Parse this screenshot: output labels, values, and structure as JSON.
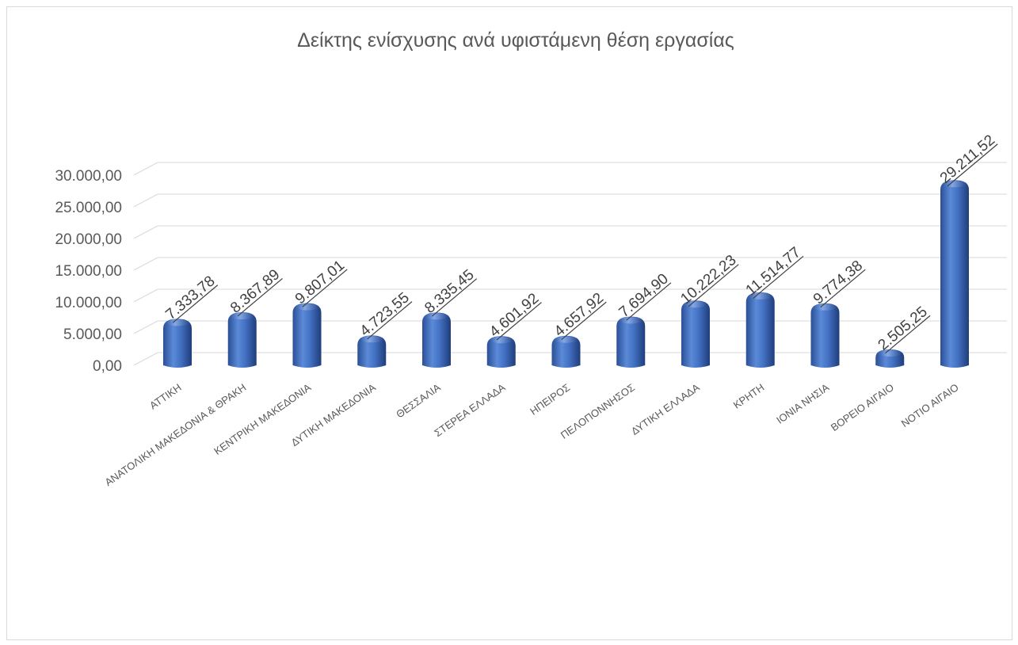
{
  "chart_data": {
    "type": "bar",
    "title": "Δείκτης ενίσχυσης ανά υφιστάμενη θέση εργασίας",
    "xlabel": "",
    "ylabel": "",
    "ylim": [
      0,
      30000
    ],
    "yticks": [
      "0,00",
      "5.000,00",
      "10.000,00",
      "15.000,00",
      "20.000,00",
      "25.000,00",
      "30.000,00"
    ],
    "categories": [
      "ΑΤΤΙΚΗ",
      "ΑΝΑΤΟΛΙΚΗ  ΜΑΚΕΔΟΝΙΑ & ΘΡΑΚΗ",
      "ΚΕΝΤΡΙΚΗ ΜΑΚΕΔΟΝΙΑ",
      "ΔΥΤΙΚΗ ΜΑΚΕΔΟΝΙΑ",
      "ΘΕΣΣΑΛΙΑ",
      "ΣΤΕΡΕΑ  ΕΛΛΑΔΑ",
      "ΗΠΕΙΡΟΣ",
      "ΠΕΛΟΠΟΝΝΗΣΟΣ",
      "ΔΥΤΙΚΗ ΕΛΛΑΔΑ",
      "ΚΡΗΤΗ",
      "ΙΟΝΙΑ ΝΗΣΙΑ",
      "ΒΟΡΕΙΟ ΑΙΓΑΙΟ",
      "ΝΟΤΙΟ ΑΙΓΑΙΟ"
    ],
    "values": [
      7333.78,
      8367.89,
      9807.01,
      4723.55,
      8335.45,
      4601.92,
      4657.92,
      7694.9,
      10222.23,
      11514.77,
      9774.38,
      2505.25,
      29211.52
    ],
    "data_labels": [
      "7.333,78",
      "8.367,89",
      "9.807,01",
      "4.723,55",
      "8.335,45",
      "4.601,92",
      "4.657,92",
      "7.694,90",
      "10.222,23",
      "11.514,77",
      "9.774,38",
      "2.505,25",
      "29.211,52"
    ],
    "grid": true,
    "legend": "none",
    "colors": {
      "bar": "#4472c4",
      "bar_dark": "#1f3d7a",
      "bar_light": "#7fa3e0",
      "grid": "#d9d9d9",
      "text": "#595959"
    }
  }
}
